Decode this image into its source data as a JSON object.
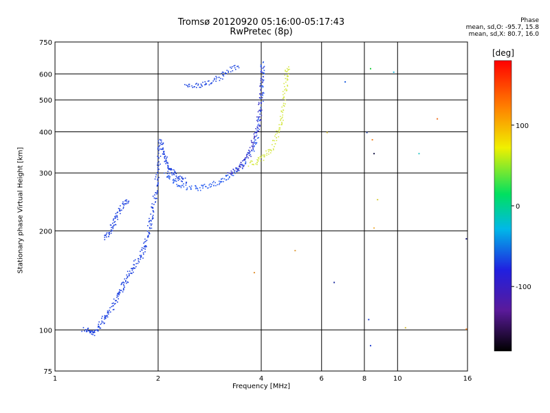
{
  "chart_data": {
    "type": "scatter",
    "title": "Tromsø 20120920 05:16:00-05:17:43",
    "subtitle": "RwPretec (8p)",
    "xlabel": "Frequency [MHz]",
    "ylabel": "Stationary phase Virtual Height [km]",
    "x_scale": "log",
    "y_scale": "log",
    "xlim": [
      1,
      16
    ],
    "ylim": [
      75,
      750
    ],
    "x_ticks": [
      1,
      2,
      4,
      6,
      8,
      10,
      16
    ],
    "y_ticks": [
      75,
      100,
      200,
      300,
      400,
      500,
      600,
      750
    ],
    "grid": true,
    "stats": {
      "header": "Phase",
      "line1": "mean, sd,O: -95.7, 15.8",
      "line2": "mean, sd,X:  80.7, 16.0"
    },
    "colorbar": {
      "label": "[deg]",
      "range": [
        -180,
        180
      ],
      "ticks": [
        100,
        0,
        -100
      ]
    },
    "traces": [
      {
        "phase": -100,
        "color": "#1a3fe0",
        "points": [
          [
            1.21,
            101
          ],
          [
            1.26,
            99
          ],
          [
            1.3,
            98
          ],
          [
            1.35,
            104
          ],
          [
            1.4,
            110
          ],
          [
            1.45,
            116
          ],
          [
            1.5,
            125
          ],
          [
            1.55,
            132
          ],
          [
            1.6,
            140
          ],
          [
            1.65,
            149
          ],
          [
            1.7,
            160
          ],
          [
            1.78,
            168
          ],
          [
            1.82,
            180
          ],
          [
            1.86,
            198
          ],
          [
            1.9,
            215
          ],
          [
            1.93,
            235
          ],
          [
            1.96,
            260
          ],
          [
            1.98,
            290
          ],
          [
            2.0,
            330
          ],
          [
            2.02,
            380
          ],
          [
            2.05,
            350
          ],
          [
            2.1,
            330
          ],
          [
            2.15,
            310
          ],
          [
            2.2,
            300
          ],
          [
            2.3,
            290
          ],
          [
            2.4,
            283
          ]
        ]
      },
      {
        "phase": -100,
        "color": "#1a3fe0",
        "points": [
          [
            1.4,
            190
          ],
          [
            1.44,
            200
          ],
          [
            1.48,
            212
          ],
          [
            1.52,
            225
          ],
          [
            1.58,
            240
          ],
          [
            1.63,
            250
          ]
        ]
      },
      {
        "phase": -100,
        "color": "#2a5ef0",
        "points": [
          [
            2.1,
            300
          ],
          [
            2.2,
            285
          ],
          [
            2.3,
            275
          ],
          [
            2.5,
            270
          ],
          [
            2.7,
            272
          ],
          [
            2.9,
            278
          ],
          [
            3.1,
            288
          ],
          [
            3.3,
            300
          ],
          [
            3.5,
            318
          ],
          [
            3.7,
            345
          ],
          [
            3.85,
            380
          ],
          [
            3.95,
            440
          ],
          [
            4.0,
            520
          ],
          [
            4.02,
            600
          ],
          [
            4.03,
            650
          ]
        ]
      },
      {
        "phase": -110,
        "color": "#3a34c8",
        "points": [
          [
            3.2,
            300
          ],
          [
            3.4,
            310
          ],
          [
            3.55,
            325
          ],
          [
            3.7,
            350
          ],
          [
            3.8,
            380
          ],
          [
            3.9,
            420
          ],
          [
            3.95,
            470
          ],
          [
            4.0,
            540
          ],
          [
            4.03,
            640
          ]
        ]
      },
      {
        "phase": 100,
        "color": "#d6e84a",
        "points": [
          [
            3.7,
            320
          ],
          [
            3.9,
            328
          ],
          [
            4.1,
            340
          ],
          [
            4.3,
            362
          ],
          [
            4.45,
            395
          ],
          [
            4.55,
            430
          ],
          [
            4.62,
            480
          ],
          [
            4.68,
            540
          ],
          [
            4.72,
            590
          ],
          [
            4.75,
            630
          ]
        ]
      },
      {
        "phase": -100,
        "color": "#2048e0",
        "points": [
          [
            2.4,
            560
          ],
          [
            2.6,
            555
          ],
          [
            2.8,
            565
          ],
          [
            3.0,
            585
          ],
          [
            3.2,
            615
          ],
          [
            3.4,
            640
          ]
        ]
      }
    ],
    "scatter_points": [
      {
        "x": 8.3,
        "y": 625,
        "phase": 20,
        "color": "#1fd040"
      },
      {
        "x": 9.7,
        "y": 610,
        "phase": -20,
        "color": "#20b8d8"
      },
      {
        "x": 6.2,
        "y": 400,
        "phase": 90,
        "color": "#d8c040"
      },
      {
        "x": 8.1,
        "y": 400,
        "phase": -60,
        "color": "#2040a0"
      },
      {
        "x": 8.4,
        "y": 380,
        "phase": 130,
        "color": "#f08020"
      },
      {
        "x": 8.5,
        "y": 345,
        "phase": -170,
        "color": "#101040"
      },
      {
        "x": 11.5,
        "y": 345,
        "phase": -20,
        "color": "#30c8c8"
      },
      {
        "x": 8.7,
        "y": 250,
        "phase": 100,
        "color": "#d8d040"
      },
      {
        "x": 8.5,
        "y": 205,
        "phase": 120,
        "color": "#f0b040"
      },
      {
        "x": 5.0,
        "y": 175,
        "phase": 120,
        "color": "#e0a040"
      },
      {
        "x": 15.8,
        "y": 190,
        "phase": -120,
        "color": "#202080"
      },
      {
        "x": 3.8,
        "y": 150,
        "phase": 130,
        "color": "#e09030"
      },
      {
        "x": 6.5,
        "y": 140,
        "phase": -120,
        "color": "#2030a0"
      },
      {
        "x": 8.2,
        "y": 108,
        "phase": -100,
        "color": "#2040d0"
      },
      {
        "x": 10.5,
        "y": 102,
        "phase": 110,
        "color": "#d8c040"
      },
      {
        "x": 15.8,
        "y": 101,
        "phase": 130,
        "color": "#f08020"
      },
      {
        "x": 8.3,
        "y": 90,
        "phase": -100,
        "color": "#2040d0"
      },
      {
        "x": 13.0,
        "y": 440,
        "phase": 140,
        "color": "#f07020"
      },
      {
        "x": 7.0,
        "y": 570,
        "phase": -80,
        "color": "#2060e0"
      }
    ]
  }
}
